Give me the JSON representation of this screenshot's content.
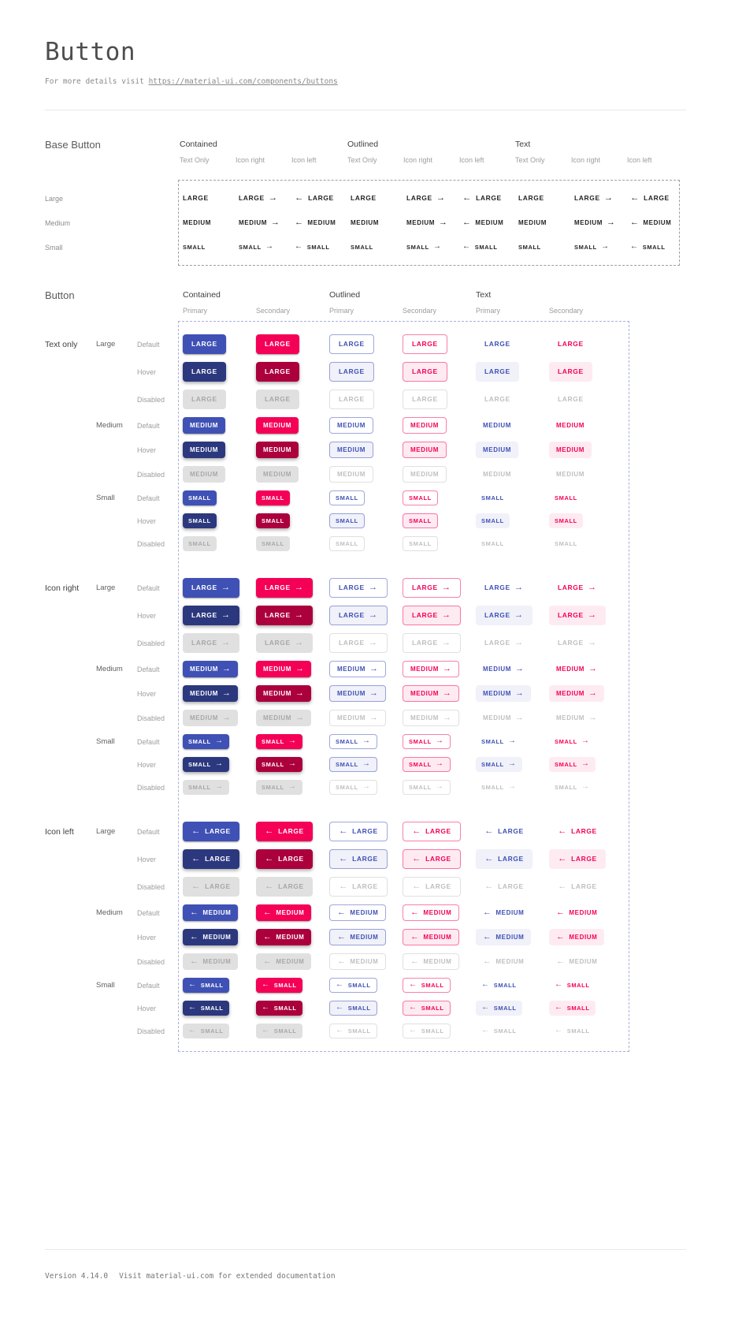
{
  "page": {
    "title": "Button",
    "subtitle_prefix": "For more details visit ",
    "subtitle_link": "https://material-ui.com/components/buttons"
  },
  "base_section": {
    "heading": "Base Button",
    "groups": [
      "Contained",
      "Outlined",
      "Text"
    ],
    "variants": [
      "Text Only",
      "Icon right",
      "Icon left"
    ],
    "sizes": [
      "Large",
      "Medium",
      "Small"
    ],
    "button_labels": [
      "LARGE",
      "MEDIUM",
      "SMALL"
    ]
  },
  "button_section": {
    "heading": "Button",
    "groups": [
      "Contained",
      "Outlined",
      "Text"
    ],
    "palettes": [
      "Primary",
      "Secondary"
    ],
    "row_groups": [
      "Text only",
      "Icon right",
      "Icon left"
    ],
    "sizes": [
      "Large",
      "Medium",
      "Small"
    ],
    "states": [
      "Default",
      "Hover",
      "Disabled"
    ],
    "button_labels": [
      "LARGE",
      "MEDIUM",
      "SMALL"
    ]
  },
  "icons": {
    "arrow_right": "→",
    "arrow_left": "←"
  },
  "colors": {
    "primary": "#3f51b5",
    "primary_dark": "#2c387e",
    "primary_border": "rgba(63,81,181,0.5)",
    "primary_tint": "rgba(63,81,181,0.08)",
    "secondary": "#f50057",
    "secondary_dark": "#ab003c",
    "secondary_border": "rgba(245,0,87,0.5)",
    "secondary_tint": "rgba(245,0,87,0.08)",
    "disabled_bg": "rgba(0,0,0,0.12)",
    "disabled_text": "rgba(0,0,0,0.26)",
    "base_text": "rgba(0,0,0,0.87)"
  },
  "footer": {
    "version": "Version 4.14.0",
    "note": "Visit material-ui.com for extended documentation"
  }
}
